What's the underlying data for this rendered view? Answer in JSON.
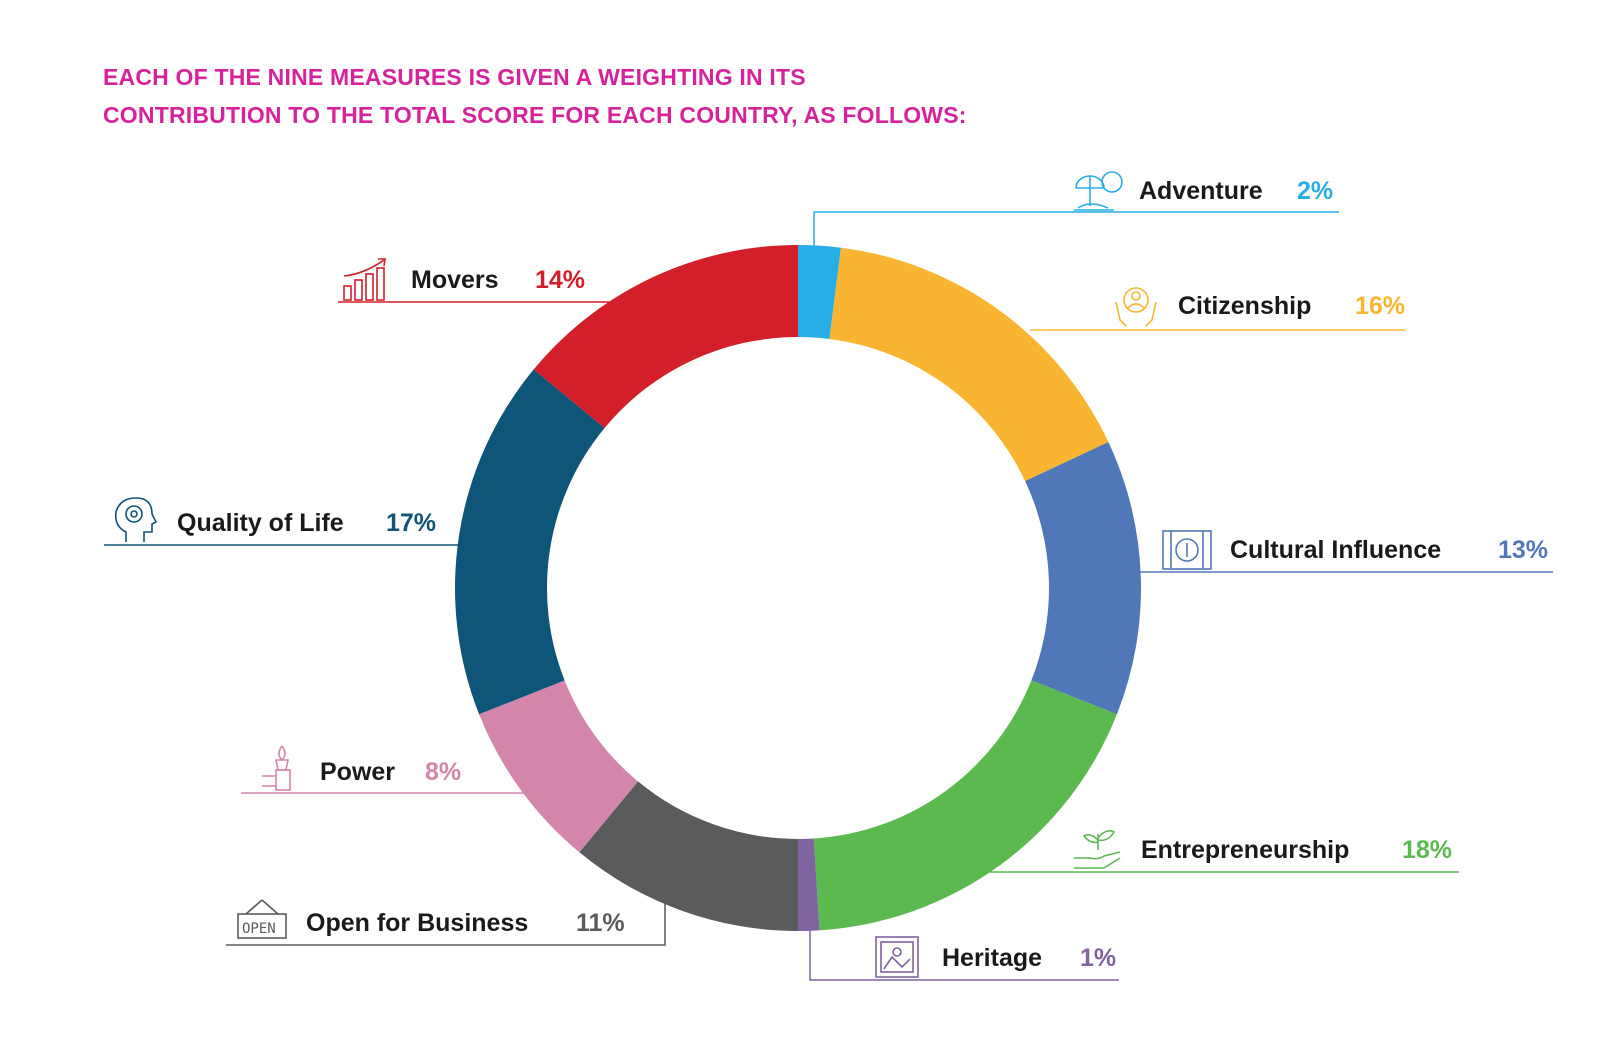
{
  "title_lines": [
    "EACH OF THE NINE MEASURES IS GIVEN A WEIGHTING IN ITS",
    "CONTRIBUTION TO THE TOTAL SCORE FOR EACH COUNTRY, AS FOLLOWS:"
  ],
  "chart_data": {
    "type": "pie",
    "donut": true,
    "title": "EACH OF THE NINE MEASURES IS GIVEN A WEIGHTING IN ITS CONTRIBUTION TO THE TOTAL SCORE FOR EACH COUNTRY, AS FOLLOWS:",
    "unit": "%",
    "slices": [
      {
        "key": "adventure",
        "label": "Adventure",
        "value": 2,
        "value_label": "2%",
        "color": "#27aee6",
        "icon": "beach-umbrella-icon"
      },
      {
        "key": "citizenship",
        "label": "Citizenship",
        "value": 16,
        "value_label": "16%",
        "color": "#f9b531",
        "icon": "hands-person-icon"
      },
      {
        "key": "cultural",
        "label": "Cultural Influence",
        "value": 13,
        "value_label": "13%",
        "color": "#5078b9",
        "icon": "film-strip-icon"
      },
      {
        "key": "entrepreneurship",
        "label": "Entrepreneurship",
        "value": 18,
        "value_label": "18%",
        "color": "#5cb94f",
        "icon": "hand-sprout-icon"
      },
      {
        "key": "heritage",
        "label": "Heritage",
        "value": 1,
        "value_label": "1%",
        "color": "#7f64a0",
        "icon": "framed-picture-icon"
      },
      {
        "key": "open",
        "label": "Open for Business",
        "value": 11,
        "value_label": "11%",
        "color": "#5a5b5d",
        "icon": "open-sign-icon"
      },
      {
        "key": "power",
        "label": "Power",
        "value": 8,
        "value_label": "8%",
        "color": "#d386aa",
        "icon": "hand-torch-icon"
      },
      {
        "key": "quality",
        "label": "Quality of Life",
        "value": 17,
        "value_label": "17%",
        "color": "#0e5579",
        "icon": "head-gear-icon"
      },
      {
        "key": "movers",
        "label": "Movers",
        "value": 14,
        "value_label": "14%",
        "color": "#d31f2a",
        "icon": "bar-growth-icon"
      }
    ],
    "legend": "none"
  }
}
